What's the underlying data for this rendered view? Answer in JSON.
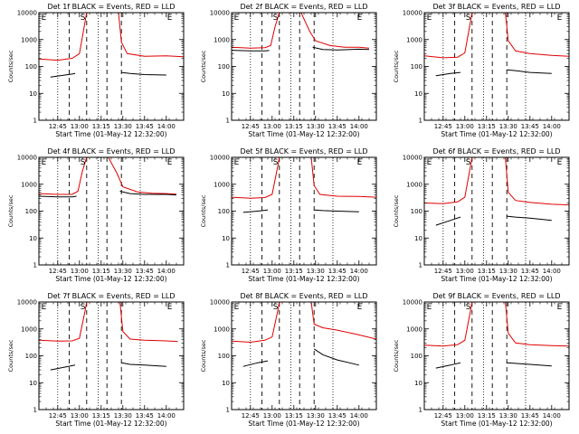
{
  "figure": {
    "xlabel": "Start Time (01-May-12 12:32:00)",
    "ylabel": "Counts/sec",
    "colors": {
      "events": "#000000",
      "lld": "#e00000",
      "axes": "#000000",
      "background": "#ffffff"
    }
  },
  "chart_data": [
    {
      "type": "line",
      "title": "Det 1f BLACK = Events, RED = LLD",
      "xlabel": "Start Time (01-May-12 12:32:00)",
      "ylabel": "Counts/sec",
      "yscale": "log",
      "ylim": [
        1,
        10000
      ],
      "xlim": [
        "12:32",
        "14:12"
      ],
      "xticks": [
        "12:45",
        "13:00",
        "13:15",
        "13:30",
        "13:45",
        "14:00"
      ],
      "yticks": [
        "1",
        "10",
        "100",
        "1000",
        "10000"
      ],
      "markers": [
        {
          "label": "E",
          "time": "12:33"
        },
        {
          "label": "S",
          "time": "13:00"
        },
        {
          "label": "E",
          "time": "14:00"
        }
      ],
      "dotted_lines": [
        "12:45",
        "13:13",
        "13:42"
      ],
      "dashed_lines": [
        "12:53",
        "13:05",
        "13:19",
        "13:29"
      ],
      "gaps": [
        [
          "13:05",
          "13:27"
        ]
      ],
      "lld_segments": [
        {
          "x": [
            "12:32",
            "12:45",
            "12:55",
            "13:00",
            "13:04",
            "13:05"
          ],
          "y": [
            190,
            170,
            200,
            300,
            5000,
            10000
          ]
        },
        {
          "x": [
            "13:27",
            "13:29",
            "13:33",
            "13:45",
            "14:00",
            "14:12"
          ],
          "y": [
            10000,
            800,
            300,
            240,
            250,
            230
          ]
        }
      ],
      "events_segments": [
        {
          "x": [
            "12:40",
            "12:50",
            "12:55",
            "12:57"
          ],
          "y": [
            40,
            48,
            52,
            55
          ]
        },
        {
          "x": [
            "13:29",
            "13:35",
            "13:45",
            "14:00"
          ],
          "y": [
            60,
            55,
            50,
            48
          ]
        }
      ]
    },
    {
      "type": "line",
      "title": "Det 2f BLACK = Events, RED = LLD",
      "xlabel": "Start Time (01-May-12 12:32:00)",
      "ylabel": "Counts/sec",
      "yscale": "log",
      "ylim": [
        1,
        10000
      ],
      "xlim": [
        "12:32",
        "14:12"
      ],
      "xticks": [
        "12:45",
        "13:00",
        "13:15",
        "13:30",
        "13:45",
        "14:00"
      ],
      "yticks": [
        "1",
        "10",
        "100",
        "1000",
        "10000"
      ],
      "markers": [
        {
          "label": "E",
          "time": "12:33"
        },
        {
          "label": "S",
          "time": "13:00"
        },
        {
          "label": "E",
          "time": "13:58"
        }
      ],
      "dotted_lines": [
        "12:45",
        "13:13",
        "13:42"
      ],
      "dashed_lines": [
        "12:53",
        "13:05",
        "13:19",
        "13:29"
      ],
      "gaps": [],
      "lld_segments": [
        {
          "x": [
            "12:32",
            "12:45",
            "12:55",
            "12:59",
            "13:02",
            "13:05",
            "13:20",
            "13:26",
            "13:30",
            "13:40",
            "13:50",
            "14:00",
            "14:07"
          ],
          "y": [
            520,
            480,
            500,
            600,
            3000,
            10000,
            10000,
            2000,
            900,
            600,
            520,
            520,
            480
          ]
        }
      ],
      "events_segments": [
        {
          "x": [
            "12:32",
            "12:45",
            "12:55",
            "12:58"
          ],
          "y": [
            400,
            380,
            380,
            390
          ]
        },
        {
          "x": [
            "13:28",
            "13:35",
            "13:45",
            "14:00",
            "14:07"
          ],
          "y": [
            520,
            430,
            410,
            440,
            430
          ]
        }
      ]
    },
    {
      "type": "line",
      "title": "Det 3f BLACK = Events, RED = LLD",
      "xlabel": "Start Time (01-May-12 12:32:00)",
      "ylabel": "Counts/sec",
      "yscale": "log",
      "ylim": [
        1,
        10000
      ],
      "xlim": [
        "12:32",
        "14:12"
      ],
      "xticks": [
        "12:45",
        "13:00",
        "13:15",
        "13:30",
        "13:45",
        "14:00"
      ],
      "yticks": [
        "1",
        "10",
        "100",
        "1000",
        "10000"
      ],
      "markers": [
        {
          "label": "E",
          "time": "12:33"
        },
        {
          "label": "S",
          "time": "13:00"
        },
        {
          "label": "E",
          "time": "14:03"
        }
      ],
      "dotted_lines": [
        "12:45",
        "13:13",
        "13:42"
      ],
      "dashed_lines": [
        "12:53",
        "13:05",
        "13:19",
        "13:29"
      ],
      "gaps": [
        [
          "13:05",
          "13:28"
        ]
      ],
      "lld_segments": [
        {
          "x": [
            "12:32",
            "12:45",
            "12:55",
            "13:00",
            "13:04",
            "13:05"
          ],
          "y": [
            250,
            210,
            220,
            320,
            5000,
            10000
          ]
        },
        {
          "x": [
            "13:28",
            "13:30",
            "13:35",
            "13:45",
            "14:00",
            "14:12"
          ],
          "y": [
            10000,
            900,
            380,
            300,
            260,
            240
          ]
        }
      ],
      "events_segments": [
        {
          "x": [
            "12:40",
            "12:50",
            "12:57"
          ],
          "y": [
            45,
            55,
            60
          ]
        },
        {
          "x": [
            "13:29",
            "13:35",
            "13:45",
            "14:00"
          ],
          "y": [
            75,
            70,
            60,
            55
          ]
        }
      ]
    },
    {
      "type": "line",
      "title": "Det 4f BLACK = Events, RED = LLD",
      "xlabel": "Start Time (01-May-12 12:32:00)",
      "ylabel": "Counts/sec",
      "yscale": "log",
      "ylim": [
        1,
        10000
      ],
      "xlim": [
        "12:32",
        "14:12"
      ],
      "xticks": [
        "12:45",
        "13:00",
        "13:15",
        "13:30",
        "13:45",
        "14:00"
      ],
      "yticks": [
        "1",
        "10",
        "100",
        "1000",
        "10000"
      ],
      "markers": [
        {
          "label": "E",
          "time": "12:33"
        },
        {
          "label": "S",
          "time": "13:00"
        },
        {
          "label": "E",
          "time": "14:00"
        }
      ],
      "dotted_lines": [
        "12:45",
        "13:13",
        "13:42"
      ],
      "dashed_lines": [
        "12:53",
        "13:05",
        "13:19",
        "13:29"
      ],
      "gaps": [],
      "lld_segments": [
        {
          "x": [
            "12:32",
            "12:45",
            "12:55",
            "12:59",
            "13:02",
            "13:05",
            "13:20",
            "13:26",
            "13:30",
            "13:40",
            "13:50",
            "14:00",
            "14:07"
          ],
          "y": [
            450,
            420,
            420,
            550,
            3000,
            10000,
            10000,
            2500,
            800,
            520,
            460,
            450,
            430
          ]
        }
      ],
      "events_segments": [
        {
          "x": [
            "12:32",
            "12:45",
            "12:55",
            "12:58"
          ],
          "y": [
            360,
            340,
            340,
            360
          ]
        },
        {
          "x": [
            "13:28",
            "13:35",
            "13:45",
            "14:00",
            "14:07"
          ],
          "y": [
            550,
            450,
            420,
            420,
            400
          ]
        }
      ]
    },
    {
      "type": "line",
      "title": "Det 5f BLACK = Events, RED = LLD",
      "xlabel": "Start Time (01-May-12 12:32:00)",
      "ylabel": "Counts/sec",
      "yscale": "log",
      "ylim": [
        1,
        10000
      ],
      "xlim": [
        "12:32",
        "14:12"
      ],
      "xticks": [
        "12:45",
        "13:00",
        "13:15",
        "13:30",
        "13:45",
        "14:00"
      ],
      "yticks": [
        "1",
        "10",
        "100",
        "1000",
        "10000"
      ],
      "markers": [
        {
          "label": "E",
          "time": "12:33"
        },
        {
          "label": "S",
          "time": "13:00"
        },
        {
          "label": "E",
          "time": "13:58"
        }
      ],
      "dotted_lines": [
        "12:45",
        "13:13",
        "13:42"
      ],
      "dashed_lines": [
        "12:53",
        "13:05",
        "13:19",
        "13:29"
      ],
      "gaps": [
        [
          "13:05",
          "13:27"
        ]
      ],
      "lld_segments": [
        {
          "x": [
            "12:32",
            "12:45",
            "12:55",
            "13:00",
            "13:04",
            "13:05"
          ],
          "y": [
            330,
            300,
            320,
            420,
            5000,
            10000
          ]
        },
        {
          "x": [
            "13:27",
            "13:29",
            "13:33",
            "13:45",
            "14:00",
            "14:12"
          ],
          "y": [
            10000,
            900,
            420,
            360,
            350,
            330
          ]
        }
      ],
      "events_segments": [
        {
          "x": [
            "12:40",
            "12:50",
            "12:57"
          ],
          "y": [
            90,
            100,
            110
          ]
        },
        {
          "x": [
            "13:29",
            "13:35",
            "13:45",
            "14:00"
          ],
          "y": [
            110,
            105,
            100,
            95
          ]
        }
      ]
    },
    {
      "type": "line",
      "title": "Det 6f BLACK = Events, RED = LLD",
      "xlabel": "Start Time (01-May-12 12:32:00)",
      "ylabel": "Counts/sec",
      "yscale": "log",
      "ylim": [
        1,
        10000
      ],
      "xlim": [
        "12:32",
        "14:12"
      ],
      "xticks": [
        "12:45",
        "13:00",
        "13:15",
        "13:30",
        "13:45",
        "14:00"
      ],
      "yticks": [
        "1",
        "10",
        "100",
        "1000",
        "10000"
      ],
      "markers": [
        {
          "label": "E",
          "time": "12:33"
        },
        {
          "label": "S",
          "time": "13:00"
        },
        {
          "label": "E",
          "time": "14:03"
        }
      ],
      "dotted_lines": [
        "12:45",
        "13:13",
        "13:42"
      ],
      "dashed_lines": [
        "12:53",
        "13:05",
        "13:19",
        "13:29"
      ],
      "gaps": [
        [
          "13:05",
          "13:28"
        ]
      ],
      "lld_segments": [
        {
          "x": [
            "12:32",
            "12:45",
            "12:55",
            "13:00",
            "13:04",
            "13:05"
          ],
          "y": [
            200,
            190,
            220,
            330,
            5000,
            10000
          ]
        },
        {
          "x": [
            "13:28",
            "13:30",
            "13:35",
            "13:45",
            "14:00",
            "14:12"
          ],
          "y": [
            10000,
            500,
            250,
            210,
            180,
            170
          ]
        }
      ],
      "events_segments": [
        {
          "x": [
            "12:40",
            "12:50",
            "12:57"
          ],
          "y": [
            30,
            45,
            60
          ]
        },
        {
          "x": [
            "13:29",
            "13:35",
            "13:45",
            "14:00"
          ],
          "y": [
            65,
            60,
            55,
            45
          ]
        }
      ]
    },
    {
      "type": "line",
      "title": "Det 7f BLACK = Events, RED = LLD",
      "xlabel": "Start Time (01-May-12 12:32:00)",
      "ylabel": "Counts/sec",
      "yscale": "log",
      "ylim": [
        1,
        10000
      ],
      "xlim": [
        "12:32",
        "14:12"
      ],
      "xticks": [
        "12:45",
        "13:00",
        "13:15",
        "13:30",
        "13:45",
        "14:00"
      ],
      "yticks": [
        "1",
        "10",
        "100",
        "1000",
        "10000"
      ],
      "markers": [
        {
          "label": "E",
          "time": "12:33"
        },
        {
          "label": "S",
          "time": "13:00"
        },
        {
          "label": "E",
          "time": "14:00"
        }
      ],
      "dotted_lines": [
        "12:45",
        "13:13",
        "13:42"
      ],
      "dashed_lines": [
        "12:53",
        "13:05",
        "13:19",
        "13:29"
      ],
      "gaps": [
        [
          "13:05",
          "13:28"
        ]
      ],
      "lld_segments": [
        {
          "x": [
            "12:32",
            "12:45",
            "12:55",
            "13:00",
            "13:04",
            "13:05"
          ],
          "y": [
            380,
            350,
            360,
            450,
            5000,
            10000
          ]
        },
        {
          "x": [
            "13:28",
            "13:30",
            "13:35",
            "13:45",
            "14:00",
            "14:08"
          ],
          "y": [
            10000,
            800,
            420,
            380,
            360,
            340
          ]
        }
      ],
      "events_segments": [
        {
          "x": [
            "12:40",
            "12:50",
            "12:57"
          ],
          "y": [
            30,
            38,
            45
          ]
        },
        {
          "x": [
            "13:29",
            "13:35",
            "13:45",
            "14:00"
          ],
          "y": [
            55,
            48,
            45,
            40
          ]
        }
      ]
    },
    {
      "type": "line",
      "title": "Det 8f BLACK = Events, RED = LLD",
      "xlabel": "Start Time (01-May-12 12:32:00)",
      "ylabel": "Counts/sec",
      "yscale": "log",
      "ylim": [
        1,
        10000
      ],
      "xlim": [
        "12:32",
        "14:12"
      ],
      "xticks": [
        "12:45",
        "13:00",
        "13:15",
        "13:30",
        "13:45",
        "14:00"
      ],
      "yticks": [
        "1",
        "10",
        "100",
        "1000",
        "10000"
      ],
      "markers": [
        {
          "label": "E",
          "time": "12:33"
        },
        {
          "label": "S",
          "time": "13:00"
        },
        {
          "label": "E",
          "time": "13:58"
        }
      ],
      "dotted_lines": [
        "12:45",
        "13:13",
        "13:42"
      ],
      "dashed_lines": [
        "12:53",
        "13:05",
        "13:19",
        "13:29"
      ],
      "gaps": [
        [
          "13:05",
          "13:27"
        ]
      ],
      "lld_segments": [
        {
          "x": [
            "12:32",
            "12:45",
            "12:55",
            "13:00",
            "13:04",
            "13:05"
          ],
          "y": [
            350,
            320,
            380,
            500,
            5000,
            10000
          ]
        },
        {
          "x": [
            "13:27",
            "13:29",
            "13:35",
            "13:45",
            "14:00",
            "14:12"
          ],
          "y": [
            10000,
            1500,
            1100,
            900,
            600,
            420
          ]
        }
      ],
      "events_segments": [
        {
          "x": [
            "12:40",
            "12:50",
            "12:57"
          ],
          "y": [
            40,
            55,
            65
          ]
        },
        {
          "x": [
            "13:29",
            "13:35",
            "13:45",
            "14:00"
          ],
          "y": [
            180,
            110,
            70,
            45
          ]
        }
      ]
    },
    {
      "type": "line",
      "title": "Det 9f BLACK = Events, RED = LLD",
      "xlabel": "Start Time (01-May-12 12:32:00)",
      "ylabel": "Counts/sec",
      "yscale": "log",
      "ylim": [
        1,
        10000
      ],
      "xlim": [
        "12:32",
        "14:12"
      ],
      "xticks": [
        "12:45",
        "13:00",
        "13:15",
        "13:30",
        "13:45",
        "14:00"
      ],
      "yticks": [
        "1",
        "10",
        "100",
        "1000",
        "10000"
      ],
      "markers": [
        {
          "label": "E",
          "time": "12:33"
        },
        {
          "label": "S",
          "time": "13:00"
        },
        {
          "label": "E",
          "time": "14:03"
        }
      ],
      "dotted_lines": [
        "12:45",
        "13:13",
        "13:42"
      ],
      "dashed_lines": [
        "12:53",
        "13:05",
        "13:19",
        "13:29"
      ],
      "gaps": [
        [
          "13:05",
          "13:28"
        ]
      ],
      "lld_segments": [
        {
          "x": [
            "12:32",
            "12:45",
            "12:55",
            "13:00",
            "13:04",
            "13:05"
          ],
          "y": [
            250,
            230,
            260,
            380,
            5000,
            10000
          ]
        },
        {
          "x": [
            "13:28",
            "13:30",
            "13:35",
            "13:45",
            "14:00",
            "14:12"
          ],
          "y": [
            10000,
            700,
            300,
            260,
            240,
            230
          ]
        }
      ],
      "events_segments": [
        {
          "x": [
            "12:40",
            "12:50",
            "12:57"
          ],
          "y": [
            35,
            45,
            55
          ]
        },
        {
          "x": [
            "13:29",
            "13:35",
            "13:45",
            "14:00"
          ],
          "y": [
            55,
            52,
            48,
            42
          ]
        }
      ]
    }
  ]
}
